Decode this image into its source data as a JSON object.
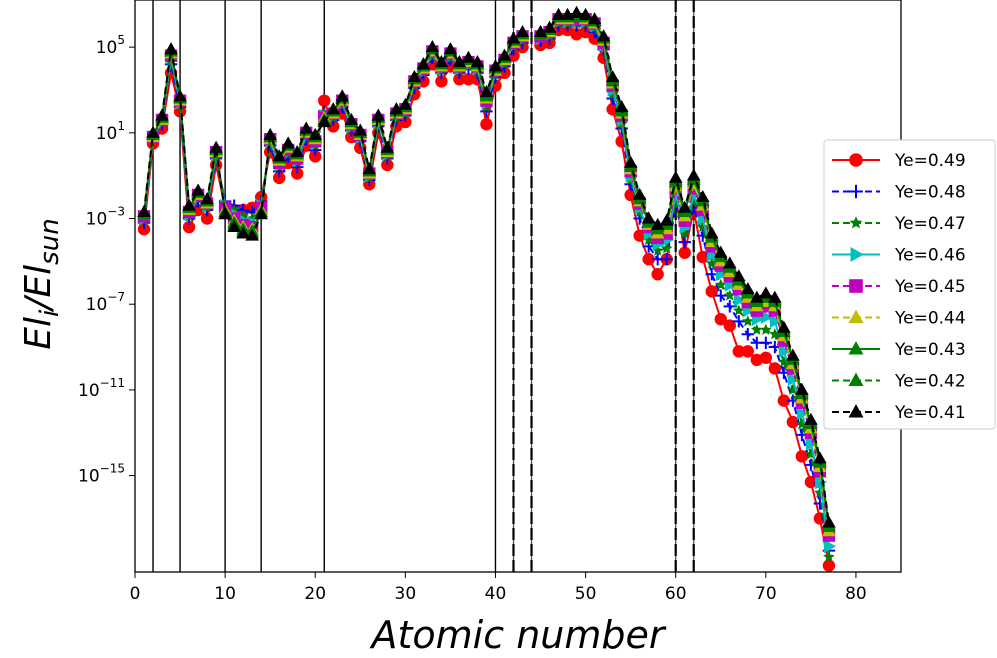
{
  "chart_data": {
    "type": "line",
    "xlabel": "Atomic number",
    "ylabel": "El_i/El_sun",
    "ylabel_main": "El",
    "ylabel_sub1": "i",
    "ylabel_mid": "/El",
    "ylabel_sub2": "sun",
    "yscale": "log",
    "xlim": [
      0,
      85
    ],
    "ylim_log10": [
      -19.5,
      7.2
    ],
    "xticks": [
      0,
      10,
      20,
      30,
      40,
      50,
      60,
      70,
      80
    ],
    "xtick_labels": [
      "0",
      "10",
      "20",
      "30",
      "40",
      "50",
      "60",
      "70",
      "80"
    ],
    "yticks_exp": [
      5,
      1,
      -3,
      -7,
      -11,
      -15
    ],
    "ytick_base": "10",
    "ytick_exps": [
      "5",
      "1",
      "−3",
      "−7",
      "−11",
      "−15"
    ],
    "vertical_lines": [
      {
        "x": 2,
        "style": "solid"
      },
      {
        "x": 5,
        "style": "solid"
      },
      {
        "x": 10,
        "style": "solid"
      },
      {
        "x": 14,
        "style": "solid"
      },
      {
        "x": 21,
        "style": "solid"
      },
      {
        "x": 40,
        "style": "solid"
      },
      {
        "x": 42,
        "style": "dashed"
      },
      {
        "x": 44,
        "style": "dashed"
      },
      {
        "x": 60,
        "style": "dashed"
      },
      {
        "x": 62,
        "style": "dashed"
      }
    ],
    "legend_position": "right",
    "x": [
      1,
      2,
      3,
      4,
      5,
      6,
      7,
      8,
      9,
      10,
      11,
      12,
      13,
      14,
      15,
      16,
      17,
      18,
      19,
      20,
      21,
      22,
      23,
      24,
      25,
      26,
      27,
      28,
      29,
      30,
      31,
      32,
      33,
      34,
      35,
      36,
      37,
      38,
      39,
      40,
      41,
      42,
      43,
      44,
      45,
      46,
      47,
      48,
      49,
      50,
      51,
      52,
      53,
      54,
      55,
      56,
      57,
      58,
      59,
      60,
      61,
      62,
      63,
      64,
      65,
      66,
      67,
      68,
      69,
      70,
      71,
      72,
      73,
      74,
      75,
      76,
      77
    ],
    "series": [
      {
        "name": "Ye=0.49",
        "color": "#ff0000",
        "marker": "circle",
        "dash": "solid",
        "values": [
          -3.5,
          0.5,
          1.2,
          3.8,
          2.0,
          -3.4,
          -2.6,
          -3.0,
          -0.5,
          -2.5,
          -2.6,
          -2.6,
          -2.5,
          -2.0,
          0.1,
          -1.1,
          -0.4,
          -0.9,
          0.4,
          -0.1,
          2.5,
          1.3,
          1.9,
          0.8,
          0.3,
          -1.4,
          1.0,
          -0.5,
          1.3,
          1.5,
          2.8,
          3.4,
          4.2,
          3.4,
          4.1,
          3.5,
          3.5,
          3.5,
          1.4,
          3.2,
          3.8,
          4.6,
          5.0,
          null,
          5.1,
          5.2,
          5.8,
          5.8,
          5.6,
          5.7,
          5.4,
          4.5,
          2.1,
          0.6,
          -1.9,
          -3.8,
          -4.9,
          -5.6,
          -4.9,
          -2.0,
          -4.6,
          -2.6,
          -4.8,
          -6.4,
          -7.7,
          -8.0,
          -9.2,
          -9.2,
          -9.6,
          -9.5,
          -10.0,
          -11.5,
          -12.5,
          -14.1,
          -15.3,
          -17.0,
          -19.2
        ]
      },
      {
        "name": "Ye=0.48",
        "color": "#0000ff",
        "marker": "plus",
        "dash": "dashed",
        "values": [
          -3.2,
          0.7,
          1.4,
          4.2,
          2.2,
          -3.0,
          -2.2,
          -2.6,
          -0.2,
          -2.2,
          -2.4,
          -2.6,
          -2.7,
          -2.2,
          0.4,
          -0.8,
          -0.1,
          -0.6,
          0.7,
          0.2,
          2.0,
          1.6,
          2.2,
          1.1,
          0.6,
          -1.2,
          1.3,
          -0.2,
          1.6,
          1.8,
          3.1,
          3.7,
          4.5,
          3.8,
          4.4,
          3.8,
          4.0,
          3.8,
          2.0,
          3.6,
          4.1,
          4.9,
          5.2,
          null,
          5.3,
          5.4,
          6.0,
          6.0,
          6.0,
          6.0,
          5.7,
          4.9,
          2.6,
          1.2,
          -1.4,
          -3.0,
          -4.3,
          -4.9,
          -4.9,
          -2.4,
          -4.1,
          -2.5,
          -3.8,
          -5.6,
          -6.6,
          -7.1,
          -7.8,
          -8.4,
          -8.8,
          -8.8,
          -9.0,
          -10.2,
          -11.5,
          -13.1,
          -14.5,
          -16.3,
          -18.5
        ]
      },
      {
        "name": "Ye=0.47",
        "color": "#008000",
        "marker": "star",
        "dash": "dashed",
        "values": [
          -3.1,
          0.7,
          1.5,
          4.4,
          2.3,
          -2.9,
          -2.1,
          -2.5,
          -0.1,
          -2.3,
          -2.6,
          -2.9,
          -3.0,
          -2.3,
          0.5,
          -0.6,
          0.0,
          -0.4,
          0.8,
          0.4,
          1.9,
          1.7,
          2.3,
          1.2,
          0.7,
          -1.1,
          1.4,
          -0.1,
          1.7,
          1.9,
          3.2,
          3.8,
          4.6,
          3.9,
          4.5,
          3.9,
          4.1,
          3.9,
          2.2,
          3.7,
          4.2,
          5.0,
          5.3,
          null,
          5.4,
          5.5,
          6.1,
          6.1,
          6.1,
          6.1,
          5.9,
          5.0,
          2.8,
          1.4,
          -1.2,
          -2.7,
          -4.0,
          -4.5,
          -4.4,
          -2.2,
          -3.7,
          -2.2,
          -3.4,
          -5.1,
          -6.1,
          -6.6,
          -7.3,
          -7.8,
          -8.2,
          -8.2,
          -8.4,
          -9.7,
          -11.0,
          -12.6,
          -14.0,
          -15.8,
          -18.8
        ]
      },
      {
        "name": "Ye=0.46",
        "color": "#00bfbf",
        "marker": "triangle-right",
        "dash": "solid",
        "values": [
          -3.0,
          0.8,
          1.5,
          4.5,
          2.4,
          -2.8,
          -2.0,
          -2.4,
          0.0,
          -2.4,
          -2.8,
          -3.1,
          -3.2,
          -2.4,
          0.6,
          -0.5,
          0.1,
          -0.3,
          0.9,
          0.5,
          1.8,
          1.8,
          2.4,
          1.3,
          0.8,
          -1.0,
          1.5,
          0.0,
          1.8,
          2.0,
          3.3,
          3.9,
          4.7,
          4.0,
          4.6,
          4.0,
          4.2,
          4.0,
          2.4,
          3.8,
          4.3,
          5.1,
          5.4,
          null,
          5.4,
          5.6,
          6.2,
          6.2,
          6.2,
          6.2,
          6.0,
          5.1,
          3.0,
          1.6,
          -1.0,
          -2.5,
          -3.7,
          -4.2,
          -4.0,
          -1.9,
          -3.4,
          -1.9,
          -3.0,
          -4.7,
          -5.6,
          -6.1,
          -6.8,
          -7.3,
          -7.7,
          -7.6,
          -7.8,
          -9.2,
          -10.5,
          -12.1,
          -13.5,
          -15.3,
          -18.3
        ]
      },
      {
        "name": "Ye=0.45",
        "color": "#bf00bf",
        "marker": "square",
        "dash": "dashed",
        "values": [
          -2.9,
          0.8,
          1.6,
          4.6,
          2.5,
          -2.7,
          -1.9,
          -2.3,
          0.1,
          -2.5,
          -3.0,
          -3.3,
          -3.4,
          -2.5,
          0.7,
          -0.4,
          0.2,
          -0.2,
          1.0,
          0.6,
          1.7,
          1.9,
          2.5,
          1.4,
          0.9,
          -0.9,
          1.6,
          0.1,
          1.9,
          2.1,
          3.4,
          4.0,
          4.8,
          4.1,
          4.7,
          4.1,
          4.3,
          4.1,
          2.5,
          3.9,
          4.4,
          5.2,
          5.5,
          null,
          5.5,
          5.7,
          6.3,
          6.3,
          6.3,
          6.3,
          6.1,
          5.2,
          3.2,
          1.8,
          -0.8,
          -2.3,
          -3.4,
          -3.9,
          -3.7,
          -1.6,
          -3.1,
          -1.6,
          -2.6,
          -4.3,
          -5.2,
          -5.7,
          -6.3,
          -6.9,
          -7.3,
          -7.1,
          -7.3,
          -8.7,
          -10.0,
          -11.6,
          -13.0,
          -14.8,
          -17.8
        ]
      },
      {
        "name": "Ye=0.44",
        "color": "#bfbf00",
        "marker": "triangle-up",
        "dash": "dashed",
        "values": [
          -2.8,
          0.8,
          1.6,
          4.7,
          2.5,
          -2.6,
          -1.9,
          -2.3,
          0.1,
          -2.6,
          -3.1,
          -3.4,
          -3.5,
          -2.6,
          0.7,
          -0.3,
          0.3,
          -0.1,
          1.0,
          0.7,
          1.7,
          1.9,
          2.5,
          1.4,
          0.9,
          -0.9,
          1.6,
          0.1,
          1.9,
          2.1,
          3.4,
          4.0,
          4.8,
          4.1,
          4.7,
          4.1,
          4.3,
          4.1,
          2.6,
          3.9,
          4.4,
          5.2,
          5.5,
          null,
          5.6,
          5.7,
          6.3,
          6.3,
          6.4,
          6.3,
          6.1,
          5.3,
          3.3,
          1.9,
          -0.7,
          -2.2,
          -3.3,
          -3.7,
          -3.5,
          -1.5,
          -2.9,
          -1.4,
          -2.4,
          -4.1,
          -5.0,
          -5.5,
          -6.1,
          -6.7,
          -7.1,
          -6.9,
          -7.1,
          -8.5,
          -9.8,
          -11.4,
          -12.8,
          -14.6,
          -17.6
        ]
      },
      {
        "name": "Ye=0.43",
        "color": "#008000",
        "marker": "triangle-up",
        "dash": "solid",
        "values": [
          -2.8,
          0.9,
          1.7,
          4.8,
          2.6,
          -2.5,
          -1.8,
          -2.2,
          0.2,
          -2.7,
          -3.2,
          -3.5,
          -3.6,
          -2.7,
          0.8,
          -0.2,
          0.4,
          0.0,
          1.1,
          0.8,
          1.6,
          2.0,
          2.6,
          1.5,
          1.0,
          -0.8,
          1.7,
          0.2,
          2.0,
          2.2,
          3.5,
          4.1,
          4.9,
          4.2,
          4.8,
          4.2,
          4.4,
          4.2,
          2.7,
          4.0,
          4.5,
          5.3,
          5.6,
          null,
          5.6,
          5.8,
          6.4,
          6.4,
          6.4,
          6.4,
          6.2,
          5.4,
          3.4,
          2.0,
          -0.6,
          -2.1,
          -3.2,
          -3.5,
          -3.3,
          -1.3,
          -2.7,
          -1.2,
          -2.2,
          -3.9,
          -4.8,
          -5.3,
          -5.9,
          -6.5,
          -6.9,
          -6.7,
          -6.9,
          -8.3,
          -9.6,
          -11.2,
          -12.6,
          -14.4,
          -17.4
        ]
      },
      {
        "name": "Ye=0.42",
        "color": "#008000",
        "marker": "triangle-up",
        "dash": "dashed",
        "values": [
          -2.7,
          0.9,
          1.7,
          4.8,
          2.6,
          -2.5,
          -1.8,
          -2.2,
          0.2,
          -2.7,
          -3.3,
          -3.6,
          -3.7,
          -2.7,
          0.8,
          -0.2,
          0.4,
          0.0,
          1.1,
          0.8,
          1.6,
          2.0,
          2.6,
          1.5,
          1.0,
          -0.8,
          1.7,
          0.2,
          2.0,
          2.2,
          3.5,
          4.1,
          4.9,
          4.2,
          4.8,
          4.2,
          4.4,
          4.2,
          2.8,
          4.0,
          4.5,
          5.3,
          5.6,
          null,
          5.7,
          5.8,
          6.4,
          6.4,
          6.5,
          6.4,
          6.2,
          5.4,
          3.5,
          2.1,
          -0.5,
          -2.0,
          -3.1,
          -3.4,
          -3.2,
          -1.2,
          -2.6,
          -1.1,
          -2.1,
          -3.8,
          -4.7,
          -5.2,
          -5.8,
          -6.4,
          -6.8,
          -6.6,
          -6.8,
          -8.2,
          -9.5,
          -11.1,
          -12.5,
          -14.3,
          -17.3
        ]
      },
      {
        "name": "Ye=0.41",
        "color": "#000000",
        "marker": "triangle-up",
        "dash": "dashed",
        "values": [
          -2.7,
          1.0,
          1.8,
          4.9,
          2.7,
          -2.4,
          -1.7,
          -2.1,
          0.3,
          -2.8,
          -3.4,
          -3.7,
          -3.8,
          -2.8,
          0.9,
          -0.1,
          0.5,
          0.1,
          1.2,
          0.9,
          1.5,
          2.1,
          2.7,
          1.6,
          1.1,
          -0.7,
          1.8,
          0.3,
          2.1,
          2.3,
          3.6,
          4.2,
          5.0,
          4.3,
          4.9,
          4.3,
          4.5,
          4.3,
          2.9,
          4.1,
          4.6,
          5.4,
          5.7,
          null,
          5.7,
          5.9,
          6.5,
          6.5,
          6.6,
          6.5,
          6.3,
          5.5,
          3.6,
          2.2,
          -0.4,
          -1.9,
          -3.0,
          -3.3,
          -3.1,
          -1.1,
          -2.5,
          -1.0,
          -2.0,
          -3.7,
          -4.6,
          -5.1,
          -5.7,
          -6.3,
          -6.7,
          -6.5,
          -6.7,
          -8.1,
          -9.4,
          -11.0,
          -12.4,
          -14.2,
          -17.2
        ]
      }
    ]
  }
}
